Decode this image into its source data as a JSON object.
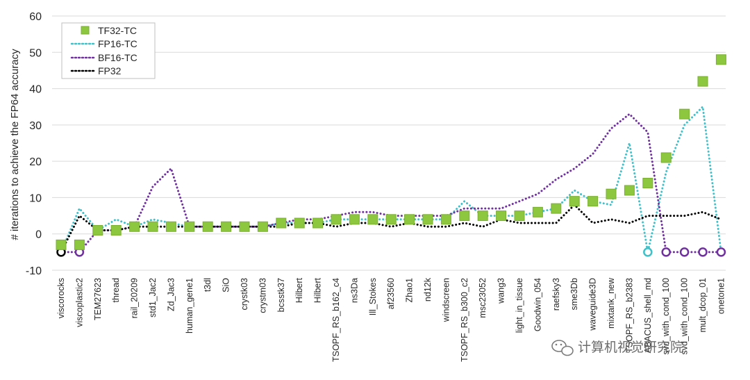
{
  "chart_data": {
    "type": "line",
    "title": "",
    "xlabel": "",
    "ylabel": "# iterations to achieve the FP64 accuracy",
    "ylim": [
      -10,
      60
    ],
    "yticks": [
      -10,
      0,
      10,
      20,
      30,
      40,
      50,
      60
    ],
    "grid": true,
    "legend_position": "top-left",
    "categories": [
      "viscorocks",
      "viscoplastic2",
      "TEM27623",
      "thread",
      "rail_20209",
      "std1_Jac2",
      "Zd_Jac3",
      "human_gene1",
      "t3dl",
      "SiO",
      "crystk03",
      "crystm03",
      "bcsstk37",
      "Hilbert",
      "Hilbert",
      "TSOPF_RS_b162_c4",
      "ns3Da",
      "Ill_Stokes",
      "af23560",
      "Zhao1",
      "nd12k",
      "windscreen",
      "TSOPF_RS_b300_c2",
      "msc23052",
      "wang3",
      "light_in_tissue",
      "Goodwin_054",
      "raefsky3",
      "sme3Db",
      "waveguide3D",
      "mixtank_new",
      "TSOPF_RS_b2383",
      "ABACUS_shell_md",
      "svd_with_cond_100",
      "svd_with_cond_100",
      "mult_dcop_01",
      "onetone1"
    ],
    "series": [
      {
        "name": "TF32-TC",
        "style": "markers",
        "color": "#8dc63f",
        "values": [
          -3,
          -3,
          1,
          1,
          2,
          2,
          2,
          2,
          2,
          2,
          2,
          2,
          3,
          3,
          3,
          4,
          4,
          4,
          4,
          4,
          4,
          4,
          5,
          5,
          5,
          5,
          6,
          7,
          9,
          9,
          11,
          12,
          14,
          21,
          33,
          42,
          48
        ]
      },
      {
        "name": "FP16-TC",
        "style": "dotted",
        "color": "#3ec1c9",
        "values": [
          -5,
          7,
          1,
          4,
          2,
          4,
          3,
          2,
          2,
          2,
          2,
          2,
          3,
          3,
          3,
          4,
          4,
          4,
          4,
          4,
          4,
          4,
          9,
          5,
          5,
          5,
          6,
          7,
          12,
          9,
          8,
          25,
          -5,
          17,
          30,
          35,
          -5
        ]
      },
      {
        "name": "BF16-TC",
        "style": "dotted",
        "color": "#7030a0",
        "values": [
          -5,
          -5,
          1,
          1,
          2,
          13,
          18,
          2,
          2,
          2,
          2,
          2,
          3,
          4,
          4,
          5,
          6,
          6,
          5,
          5,
          5,
          5,
          7,
          7,
          7,
          9,
          11,
          15,
          18,
          22,
          29,
          33,
          28,
          -5,
          -5,
          -5,
          -5
        ]
      },
      {
        "name": "FP32",
        "style": "dotted",
        "color": "#000000",
        "values": [
          -5,
          5,
          1,
          1,
          2,
          2,
          2,
          2,
          2,
          2,
          2,
          2,
          2,
          3,
          3,
          2,
          3,
          3,
          2,
          3,
          2,
          2,
          3,
          2,
          4,
          3,
          3,
          3,
          8,
          3,
          4,
          3,
          5,
          5,
          5,
          6,
          4
        ]
      }
    ],
    "failure_markers": [
      {
        "index": 0,
        "value": -5,
        "series": "FP32"
      },
      {
        "index": 1,
        "value": -5,
        "series": "BF16-TC"
      },
      {
        "index": 32,
        "value": -5,
        "series": "FP16-TC"
      },
      {
        "index": 33,
        "value": -5,
        "series": "BF16-TC"
      },
      {
        "index": 34,
        "value": -5,
        "series": "BF16-TC"
      },
      {
        "index": 35,
        "value": -5,
        "series": "BF16-TC"
      },
      {
        "index": 36,
        "value": -5,
        "series": "BF16-TC"
      }
    ]
  },
  "watermark": {
    "text": "计算机视觉研究院",
    "icon": "wechat-icon"
  }
}
